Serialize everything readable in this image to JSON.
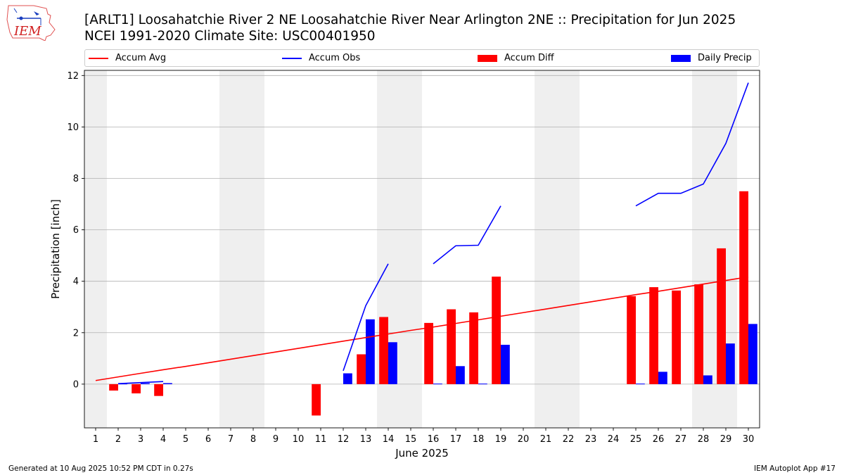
{
  "header": {
    "title": "[ARLT1] Loosahatchie River 2 NE Loosahatchie River Near Arlington 2NE :: Precipitation for Jun 2025",
    "subtitle": "NCEI 1991-2020 Climate Site: USC00401950",
    "logo_text": "IEM"
  },
  "legend": {
    "accum_avg": "Accum Avg",
    "accum_obs": "Accum Obs",
    "accum_diff": "Accum Diff",
    "daily_precip": "Daily Precip"
  },
  "footer": {
    "generated": "Generated at 10 Aug 2025 10:52 PM CDT in 0.27s",
    "app": "IEM Autoplot App #17"
  },
  "colors": {
    "accum_avg": "#ff0000",
    "accum_obs": "#0000ff",
    "accum_diff": "#ff0000",
    "daily_precip": "#0000ff",
    "weekend_shade": "#efefef",
    "grid": "#b0b0b0"
  },
  "chart_data": {
    "type": "bar",
    "xlabel": "June 2025",
    "ylabel": "Precipitation [inch]",
    "xlim": [
      0.5,
      30.5
    ],
    "ylim": [
      -1.7,
      12.2
    ],
    "yticks": [
      0,
      2,
      4,
      6,
      8,
      10,
      12
    ],
    "x": [
      1,
      2,
      3,
      4,
      5,
      6,
      7,
      8,
      9,
      10,
      11,
      12,
      13,
      14,
      15,
      16,
      17,
      18,
      19,
      20,
      21,
      22,
      23,
      24,
      25,
      26,
      27,
      28,
      29,
      30
    ],
    "weekend_days": [
      1,
      7,
      8,
      14,
      15,
      21,
      22,
      28,
      29
    ],
    "grid": true,
    "legend_position": "top",
    "series": [
      {
        "name": "Accum Avg",
        "kind": "line",
        "values": [
          0.14,
          0.28,
          0.42,
          0.56,
          0.69,
          0.83,
          0.97,
          1.11,
          1.25,
          1.39,
          1.53,
          1.67,
          1.81,
          1.95,
          2.09,
          2.22,
          2.36,
          2.5,
          2.64,
          2.78,
          2.92,
          3.06,
          3.2,
          3.34,
          3.48,
          3.61,
          3.75,
          3.89,
          4.03,
          4.17
        ]
      },
      {
        "name": "Accum Obs",
        "kind": "line",
        "values": [
          null,
          0.02,
          0.06,
          0.1,
          null,
          null,
          null,
          null,
          null,
          null,
          null,
          0.52,
          3.05,
          4.68,
          null,
          4.68,
          5.38,
          5.4,
          6.93,
          null,
          null,
          null,
          null,
          null,
          6.93,
          7.42,
          7.42,
          7.78,
          9.36,
          11.72
        ]
      },
      {
        "name": "Accum Diff",
        "kind": "bar",
        "values": [
          0,
          -0.25,
          -0.36,
          -0.46,
          0,
          0,
          0,
          0,
          0,
          0,
          -1.22,
          0,
          1.16,
          2.61,
          0,
          2.38,
          2.91,
          2.79,
          4.18,
          0,
          0,
          0,
          0,
          0,
          3.42,
          3.77,
          3.64,
          3.88,
          5.28,
          7.5
        ]
      },
      {
        "name": "Daily Precip",
        "kind": "bar",
        "values": [
          0,
          0.02,
          0.04,
          0.04,
          0,
          0,
          0,
          0,
          0,
          0,
          0,
          0.42,
          2.52,
          1.63,
          0,
          0.02,
          0.7,
          0.02,
          1.53,
          0,
          0,
          0,
          0,
          0,
          0.02,
          0.48,
          0,
          0.34,
          1.58,
          2.34
        ]
      }
    ]
  }
}
